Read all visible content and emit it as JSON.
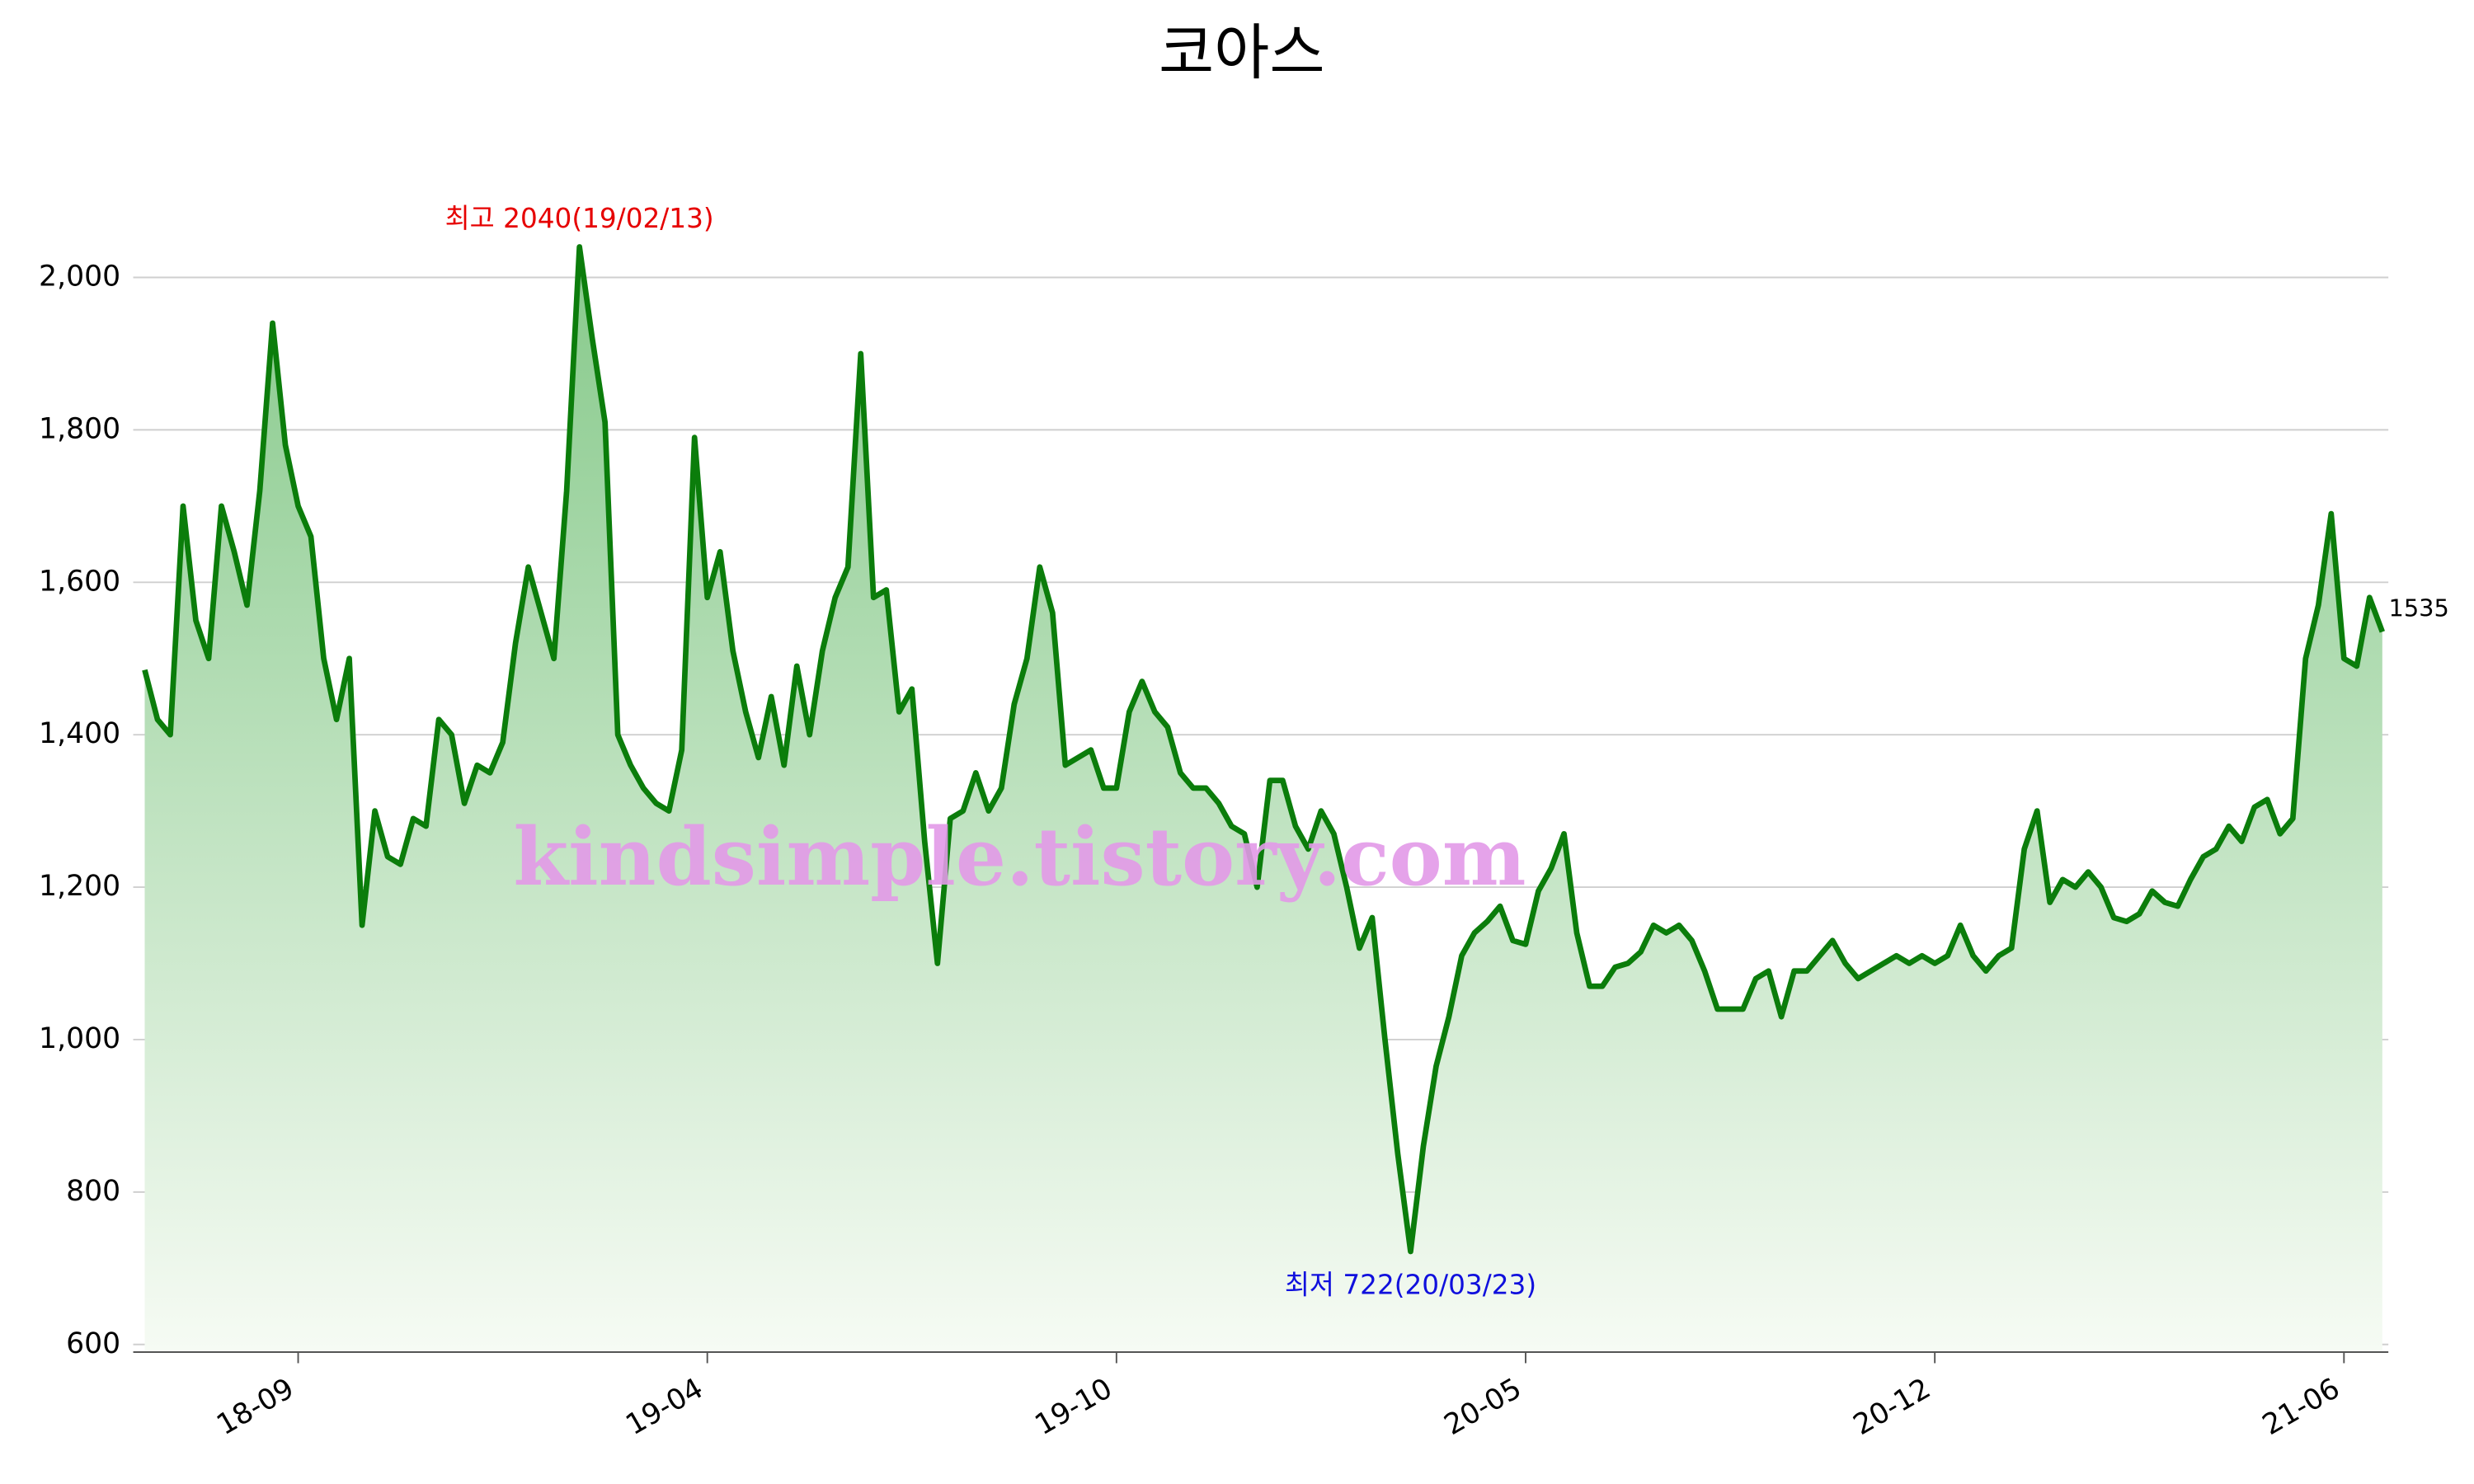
{
  "chart_data": {
    "type": "area-line",
    "title": "코아스",
    "watermark": "kindsimple.tistory.com",
    "categories": [
      null,
      null,
      null,
      null,
      null,
      null,
      null,
      null,
      null,
      null,
      null,
      null,
      "18-09",
      null,
      null,
      null,
      null,
      null,
      null,
      null,
      null,
      null,
      null,
      null,
      null,
      null,
      null,
      null,
      null,
      null,
      null,
      null,
      null,
      null,
      null,
      null,
      null,
      null,
      null,
      null,
      null,
      null,
      null,
      null,
      "19-04",
      null,
      null,
      null,
      null,
      null,
      null,
      null,
      null,
      null,
      null,
      null,
      null,
      null,
      null,
      null,
      null,
      null,
      null,
      null,
      null,
      null,
      null,
      null,
      null,
      null,
      null,
      null,
      null,
      null,
      null,
      null,
      "19-10",
      null,
      null,
      null,
      null,
      null,
      null,
      null,
      null,
      null,
      null,
      null,
      null,
      null,
      null,
      null,
      null,
      null,
      null,
      null,
      null,
      null,
      null,
      null,
      null,
      null,
      null,
      null,
      null,
      null,
      null,
      null,
      "20-05",
      null,
      null,
      null,
      null,
      null,
      null,
      null,
      null,
      null,
      null,
      null,
      null,
      null,
      null,
      null,
      null,
      null,
      null,
      null,
      null,
      null,
      null,
      null,
      null,
      null,
      null,
      null,
      null,
      null,
      null,
      null,
      "20-12",
      null,
      null,
      null,
      null,
      null,
      null,
      null,
      null,
      null,
      null,
      null,
      null,
      null,
      null,
      null,
      null,
      null,
      null,
      null,
      null,
      null,
      null,
      null,
      null,
      null,
      null,
      null,
      null,
      null,
      null,
      null,
      "21-06",
      null,
      null,
      null
    ],
    "series": [
      {
        "color": "#0b7d0b",
        "values": [
          1485,
          1420,
          1400,
          1700,
          1550,
          1500,
          1700,
          1640,
          1570,
          1720,
          1940,
          1780,
          1700,
          1660,
          1500,
          1420,
          1500,
          1150,
          1300,
          1240,
          1230,
          1290,
          1280,
          1420,
          1400,
          1310,
          1360,
          1350,
          1390,
          1520,
          1620,
          1560,
          1500,
          1720,
          2040,
          1920,
          1810,
          1400,
          1360,
          1330,
          1310,
          1300,
          1380,
          1790,
          1580,
          1640,
          1510,
          1430,
          1370,
          1450,
          1360,
          1490,
          1400,
          1510,
          1580,
          1620,
          1900,
          1580,
          1590,
          1430,
          1460,
          1260,
          1100,
          1290,
          1300,
          1350,
          1300,
          1330,
          1440,
          1500,
          1620,
          1560,
          1360,
          1370,
          1380,
          1330,
          1330,
          1430,
          1470,
          1430,
          1410,
          1350,
          1330,
          1330,
          1310,
          1280,
          1270,
          1200,
          1340,
          1340,
          1280,
          1250,
          1300,
          1270,
          1200,
          1120,
          1160,
          1000,
          850,
          722,
          860,
          965,
          1030,
          1110,
          1140,
          1155,
          1175,
          1130,
          1125,
          1195,
          1225,
          1270,
          1140,
          1070,
          1070,
          1095,
          1100,
          1115,
          1150,
          1140,
          1150,
          1130,
          1090,
          1040,
          1040,
          1040,
          1080,
          1090,
          1030,
          1090,
          1090,
          1110,
          1130,
          1100,
          1080,
          1090,
          1100,
          1110,
          1100,
          1110,
          1100,
          1110,
          1150,
          1110,
          1090,
          1110,
          1120,
          1250,
          1300,
          1180,
          1210,
          1200,
          1220,
          1200,
          1160,
          1155,
          1165,
          1195,
          1180,
          1175,
          1210,
          1240,
          1250,
          1280,
          1260,
          1305,
          1315,
          1270,
          1290,
          1500,
          1570,
          1690,
          1500,
          1490,
          1580,
          1535
        ]
      }
    ],
    "ylim": [
      590,
      2100
    ],
    "yticks": [
      600,
      800,
      {
        "value": 1000,
        "label": "1,000"
      },
      {
        "value": 1200,
        "label": "1,200"
      },
      {
        "value": 1400,
        "label": "1,400"
      },
      {
        "value": 1600,
        "label": "1,600"
      },
      {
        "value": 1800,
        "label": "1,800"
      },
      {
        "value": 2000,
        "label": "2,000"
      }
    ],
    "grid": true,
    "annotations": [
      {
        "text": "최고 2040(19/02/13)",
        "index": 34,
        "color": "#e60000"
      },
      {
        "text": "최저 722(20/03/23)",
        "index": 99,
        "color": "#1010dd"
      }
    ]
  }
}
